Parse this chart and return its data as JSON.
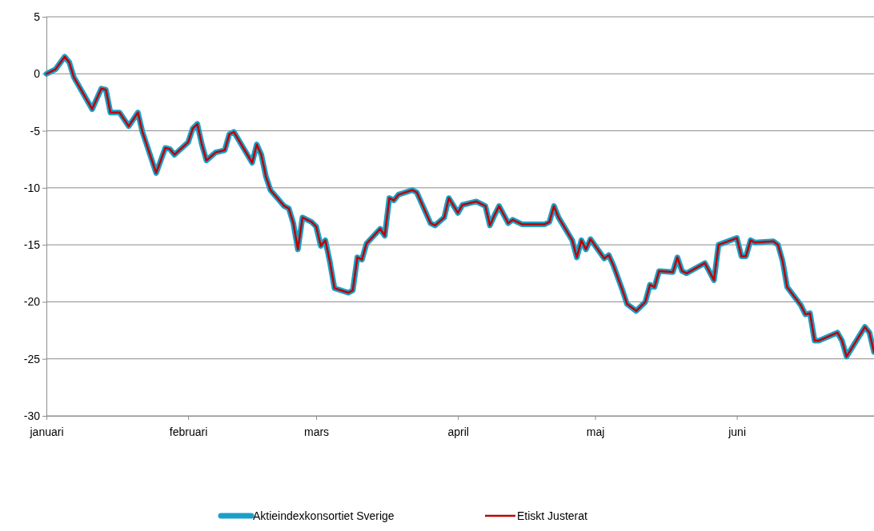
{
  "chart_data": {
    "type": "line",
    "x": [
      "--01-01",
      "--01-03",
      "--01-05",
      "--01-06",
      "--01-07",
      "--01-11",
      "--01-13",
      "--01-14",
      "--01-15",
      "--01-17",
      "--01-19",
      "--01-21",
      "--01-22",
      "--01-25",
      "--01-27",
      "--01-28",
      "--01-29",
      "--02-01",
      "--02-02",
      "--02-03",
      "--02-04",
      "--02-05",
      "--02-07",
      "--02-09",
      "--02-10",
      "--02-11",
      "--02-15",
      "--02-16",
      "--02-17",
      "--02-18",
      "--02-19",
      "--02-22",
      "--02-23",
      "--02-24",
      "--02-25",
      "--02-26",
      "--02-28",
      "--03-01",
      "--03-02",
      "--03-03",
      "--03-04",
      "--03-05",
      "--03-08",
      "--03-09",
      "--03-10",
      "--03-11",
      "--03-12",
      "--03-15",
      "--03-16",
      "--03-17",
      "--03-18",
      "--03-19",
      "--03-22",
      "--03-23",
      "--03-26",
      "--03-27",
      "--03-29",
      "--03-30",
      "--04-01",
      "--04-02",
      "--04-05",
      "--04-07",
      "--04-08",
      "--04-09",
      "--04-10",
      "--04-12",
      "--04-13",
      "--04-15",
      "--04-20",
      "--04-21",
      "--04-22",
      "--04-23",
      "--04-26",
      "--04-27",
      "--04-28",
      "--04-29",
      "--04-30",
      "--05-03",
      "--05-04",
      "--05-05",
      "--05-07",
      "--05-08",
      "--05-10",
      "--05-12",
      "--05-13",
      "--05-14",
      "--05-15",
      "--05-18",
      "--05-19",
      "--05-20",
      "--05-21",
      "--05-25",
      "--05-27",
      "--05-28",
      "--06-01",
      "--06-02",
      "--06-03",
      "--06-04",
      "--06-05",
      "--06-09",
      "--06-10",
      "--06-11",
      "--06-12",
      "--06-15",
      "--06-16",
      "--06-17",
      "--06-18",
      "--06-19",
      "--06-23",
      "--06-24",
      "--06-25",
      "--06-29",
      "--06-30",
      "--07-01"
    ],
    "series": [
      {
        "name": "Aktieindexkonsortiet Sverige",
        "color": "#1aa0c8",
        "values": [
          0,
          0.4,
          1.5,
          1,
          -0.3,
          -3.1,
          -1.3,
          -1.4,
          -3.4,
          -3.4,
          -4.6,
          -3.4,
          -5.1,
          -8.7,
          -6.5,
          -6.6,
          -7.1,
          -6,
          -4.8,
          -4.4,
          -6.2,
          -7.6,
          -6.9,
          -6.7,
          -5.3,
          -5.1,
          -7.8,
          -6.2,
          -7.1,
          -9,
          -10.2,
          -11.6,
          -11.8,
          -13.1,
          -15.4,
          -12.6,
          -13,
          -13.4,
          -15.1,
          -14.6,
          -16.5,
          -18.8,
          -19.2,
          -19,
          -16.1,
          -16.3,
          -14.9,
          -13.6,
          -14.2,
          -10.9,
          -11.1,
          -10.6,
          -10.2,
          -10.4,
          -13.1,
          -13.3,
          -12.6,
          -10.9,
          -12.2,
          -11.5,
          -11.2,
          -11.6,
          -13.3,
          -12.4,
          -11.6,
          -13.1,
          -12.8,
          -13.2,
          -13.2,
          -13,
          -11.6,
          -12.6,
          -14.6,
          -16.1,
          -14.6,
          -15.4,
          -14.5,
          -16.2,
          -15.9,
          -16.8,
          -19,
          -20.2,
          -20.8,
          -20,
          -18.5,
          -18.7,
          -17.3,
          -17.4,
          -16.1,
          -17.3,
          -17.5,
          -16.6,
          -18.1,
          -15,
          -14.4,
          -16,
          -16,
          -14.6,
          -14.8,
          -14.7,
          -15,
          -16.4,
          -18.7,
          -20.3,
          -21.1,
          -21,
          -23.4,
          -23.4,
          -22.7,
          -23.4,
          -24.8,
          -22.2,
          -22.7,
          -24.4
        ]
      },
      {
        "name": "Etiskt Justerat",
        "color": "#c00000",
        "values": [
          0,
          0.4,
          1.5,
          1,
          -0.3,
          -3.1,
          -1.3,
          -1.4,
          -3.4,
          -3.4,
          -4.6,
          -3.4,
          -5.1,
          -8.7,
          -6.5,
          -6.6,
          -7.1,
          -6,
          -4.8,
          -4.4,
          -6.2,
          -7.6,
          -6.9,
          -6.7,
          -5.3,
          -5.1,
          -7.8,
          -6.2,
          -7.1,
          -9,
          -10.2,
          -11.6,
          -11.8,
          -13.1,
          -15.4,
          -12.6,
          -13,
          -13.4,
          -15.1,
          -14.6,
          -16.5,
          -18.8,
          -19.2,
          -19,
          -16.1,
          -16.3,
          -14.9,
          -13.6,
          -14.2,
          -10.9,
          -11.1,
          -10.6,
          -10.2,
          -10.4,
          -13.1,
          -13.3,
          -12.6,
          -10.9,
          -12.2,
          -11.5,
          -11.2,
          -11.6,
          -13.3,
          -12.4,
          -11.6,
          -13.1,
          -12.8,
          -13.2,
          -13.2,
          -13,
          -11.6,
          -12.6,
          -14.6,
          -16.1,
          -14.6,
          -15.4,
          -14.5,
          -16.2,
          -15.9,
          -16.8,
          -19,
          -20.2,
          -20.8,
          -20,
          -18.5,
          -18.7,
          -17.3,
          -17.4,
          -16.1,
          -17.3,
          -17.5,
          -16.6,
          -18.1,
          -15,
          -14.4,
          -16,
          -16,
          -14.6,
          -14.8,
          -14.7,
          -15,
          -16.4,
          -18.7,
          -20.3,
          -21.1,
          -21,
          -23.4,
          -23.4,
          -22.7,
          -23.4,
          -24.8,
          -22.2,
          -22.7,
          -24.4
        ]
      }
    ],
    "xlim": [
      "--01-01",
      "--07-01"
    ],
    "xticks": [
      {
        "value": "--01-01",
        "label": "januari"
      },
      {
        "value": "--02-01",
        "label": "februari"
      },
      {
        "value": "--03-01",
        "label": "mars"
      },
      {
        "value": "--04-01",
        "label": "april"
      },
      {
        "value": "--05-01",
        "label": "maj"
      },
      {
        "value": "--06-01",
        "label": "juni"
      }
    ],
    "ylim": [
      -30,
      5
    ],
    "yticks": [
      -30,
      -25,
      -20,
      -15,
      -10,
      -5,
      0,
      5
    ],
    "grid": "y",
    "legend": "bottom",
    "marker": "none",
    "line_style": "solid"
  }
}
